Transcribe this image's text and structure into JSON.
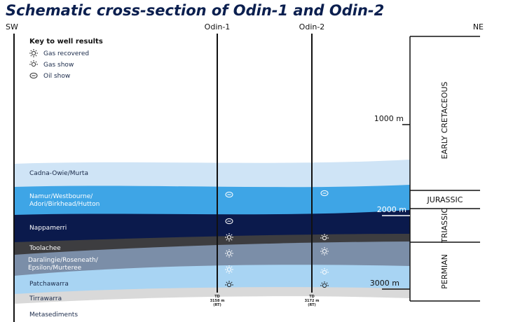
{
  "title": "Schematic cross-section of Odin-1 and Odin-2",
  "compass": {
    "left": "SW",
    "right": "NE"
  },
  "wells": [
    {
      "name": "Odin-1",
      "td": [
        "TD",
        "3158 m",
        "(RT)"
      ]
    },
    {
      "name": "Odin-2",
      "td": [
        "TD",
        "3172 m",
        "(RT)"
      ]
    }
  ],
  "key": {
    "title": "Key to well results",
    "items": [
      "Gas recovered",
      "Gas show",
      "Oil show"
    ]
  },
  "layers": [
    [
      "Cadna-Owie/Murta"
    ],
    [
      "Namur/Westbourne/",
      "Adori/Birkhead/Hutton"
    ],
    [
      "Nappamerri"
    ],
    [
      "Toolachee"
    ],
    [
      "Daralingie/Roseneath/",
      "Epsilon/Murteree"
    ],
    [
      "Patchawarra"
    ],
    [
      "Tirrawarra"
    ],
    [
      "Metasediments"
    ]
  ],
  "depths": [
    "1000 m",
    "2000 m",
    "3000 m"
  ],
  "ages": [
    "EARLY CRETACEOUS",
    "JURASSIC",
    "TRIASSIC",
    "PERMIAN"
  ]
}
